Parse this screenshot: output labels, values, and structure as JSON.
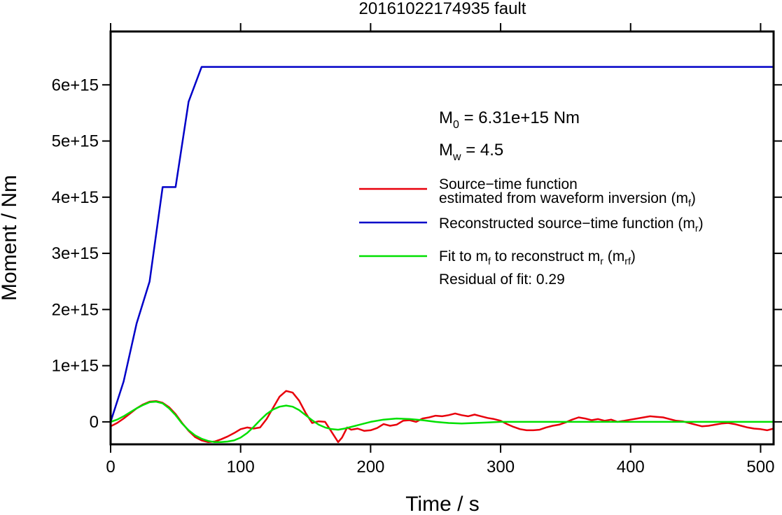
{
  "chart_data": {
    "type": "line",
    "title": "20161022174935 fault",
    "xlabel": "Time / s",
    "ylabel": "Moment / Nm",
    "xlim": [
      0,
      510
    ],
    "ylim": [
      -400000000000000.0,
      6950000000000000.0
    ],
    "x_ticks": [
      0,
      100,
      200,
      300,
      400,
      500
    ],
    "x_tick_labels": [
      "0",
      "100",
      "200",
      "300",
      "400",
      "500"
    ],
    "y_ticks": [
      0,
      1000000000000000.0,
      2000000000000000.0,
      3000000000000000.0,
      4000000000000000.0,
      5000000000000000.0,
      6000000000000000.0
    ],
    "y_tick_labels": [
      "0",
      "1e+15",
      "2e+15",
      "3e+15",
      "4e+15",
      "5e+15",
      "6e+15"
    ],
    "top_ticks": [
      0,
      100,
      200,
      300,
      400,
      500
    ],
    "right_ticks": [
      0,
      1000000000000000.0,
      2000000000000000.0,
      3000000000000000.0,
      4000000000000000.0,
      5000000000000000.0,
      6000000000000000.0
    ],
    "grid": false,
    "annotations": {
      "m0_main": "M",
      "m0_sub": "0",
      "m0_rest": " = 6.31e+15 Nm",
      "mw_main": "M",
      "mw_sub": "w",
      "mw_rest": " = 4.5",
      "residual": "Residual of fit: 0.29"
    },
    "legend": {
      "placement": "right",
      "entries": [
        {
          "color": "#e8000b",
          "line1": "Source−time function",
          "line2_main": "estimated from waveform inversion (m",
          "line2_sub": "f",
          "line2_end": ")"
        },
        {
          "color": "#0000c8",
          "line1_main": "Reconstructed source−time function (m",
          "line1_sub": "r",
          "line1_end": ")"
        },
        {
          "color": "#00e000",
          "line1_a": "Fit to m",
          "line1_sub1": "f",
          "line1_b": " to reconstruct m",
          "line1_sub2": "r",
          "line1_c": " (m",
          "line1_sub3": "rf",
          "line1_d": ")"
        }
      ]
    },
    "series": [
      {
        "color": "#0000c8",
        "x": [
          0,
          10,
          20,
          30,
          40,
          50,
          60,
          70,
          510
        ],
        "y": [
          0,
          720000000000000.0,
          1750000000000000.0,
          2500000000000000.0,
          4180000000000000.0,
          4180000000000000.0,
          5700000000000000.0,
          6320000000000000.0,
          6320000000000000.0
        ]
      },
      {
        "color": "#e8000b",
        "x": [
          0,
          5,
          10,
          15,
          20,
          25,
          30,
          35,
          40,
          45,
          50,
          55,
          60,
          65,
          70,
          75,
          80,
          85,
          90,
          95,
          100,
          105,
          110,
          115,
          120,
          125,
          130,
          135,
          140,
          145,
          150,
          155,
          160,
          165,
          170,
          175,
          178,
          182,
          185,
          190,
          195,
          200,
          205,
          210,
          215,
          220,
          225,
          230,
          235,
          240,
          245,
          250,
          255,
          260,
          265,
          270,
          275,
          280,
          285,
          290,
          295,
          300,
          305,
          310,
          315,
          320,
          325,
          330,
          335,
          340,
          345,
          350,
          355,
          360,
          365,
          370,
          375,
          380,
          385,
          390,
          395,
          400,
          405,
          410,
          415,
          420,
          425,
          430,
          435,
          440,
          445,
          450,
          455,
          460,
          465,
          470,
          475,
          480,
          485,
          490,
          495,
          500,
          505,
          510
        ],
        "y": [
          -80000000000000.0,
          -20000000000000.0,
          60000000000000.0,
          150000000000000.0,
          240000000000000.0,
          310000000000000.0,
          360000000000000.0,
          370000000000000.0,
          340000000000000.0,
          260000000000000.0,
          140000000000000.0,
          -20000000000000.0,
          -160000000000000.0,
          -270000000000000.0,
          -330000000000000.0,
          -360000000000000.0,
          -350000000000000.0,
          -310000000000000.0,
          -260000000000000.0,
          -200000000000000.0,
          -130000000000000.0,
          -100000000000000.0,
          -120000000000000.0,
          -100000000000000.0,
          50000000000000.0,
          250000000000000.0,
          450000000000000.0,
          550000000000000.0,
          520000000000000.0,
          380000000000000.0,
          160000000000000.0,
          -20000000000000.0,
          10000000000000.0,
          0.0,
          -180000000000000.0,
          -360000000000000.0,
          -280000000000000.0,
          -100000000000000.0,
          -140000000000000.0,
          -120000000000000.0,
          -160000000000000.0,
          -150000000000000.0,
          -110000000000000.0,
          -40000000000000.0,
          -70000000000000.0,
          -50000000000000.0,
          20000000000000.0,
          30000000000000.0,
          0.0,
          60000000000000.0,
          80000000000000.0,
          110000000000000.0,
          100000000000000.0,
          120000000000000.0,
          150000000000000.0,
          120000000000000.0,
          100000000000000.0,
          130000000000000.0,
          100000000000000.0,
          70000000000000.0,
          50000000000000.0,
          20000000000000.0,
          -40000000000000.0,
          -90000000000000.0,
          -130000000000000.0,
          -150000000000000.0,
          -150000000000000.0,
          -140000000000000.0,
          -100000000000000.0,
          -70000000000000.0,
          -50000000000000.0,
          -10000000000000.0,
          40000000000000.0,
          80000000000000.0,
          60000000000000.0,
          30000000000000.0,
          50000000000000.0,
          20000000000000.0,
          40000000000000.0,
          0.0,
          20000000000000.0,
          40000000000000.0,
          60000000000000.0,
          80000000000000.0,
          100000000000000.0,
          90000000000000.0,
          80000000000000.0,
          50000000000000.0,
          20000000000000.0,
          10000000000000.0,
          -20000000000000.0,
          -50000000000000.0,
          -80000000000000.0,
          -70000000000000.0,
          -50000000000000.0,
          -30000000000000.0,
          -20000000000000.0,
          -40000000000000.0,
          -70000000000000.0,
          -100000000000000.0,
          -120000000000000.0,
          -130000000000000.0,
          -150000000000000.0,
          -120000000000000.0
        ]
      },
      {
        "color": "#00e000",
        "x": [
          0,
          5,
          10,
          15,
          20,
          25,
          30,
          35,
          40,
          45,
          50,
          55,
          60,
          65,
          70,
          75,
          80,
          85,
          90,
          95,
          100,
          105,
          110,
          115,
          120,
          125,
          130,
          135,
          140,
          145,
          150,
          155,
          160,
          165,
          170,
          175,
          180,
          190,
          200,
          210,
          220,
          230,
          240,
          250,
          260,
          270,
          280,
          290,
          300,
          320,
          350,
          400,
          450,
          510
        ],
        "y": [
          0,
          40000000000000.0,
          100000000000000.0,
          170000000000000.0,
          240000000000000.0,
          300000000000000.0,
          350000000000000.0,
          360000000000000.0,
          330000000000000.0,
          240000000000000.0,
          120000000000000.0,
          -30000000000000.0,
          -150000000000000.0,
          -240000000000000.0,
          -300000000000000.0,
          -340000000000000.0,
          -360000000000000.0,
          -360000000000000.0,
          -350000000000000.0,
          -330000000000000.0,
          -280000000000000.0,
          -200000000000000.0,
          -90000000000000.0,
          30000000000000.0,
          140000000000000.0,
          220000000000000.0,
          270000000000000.0,
          290000000000000.0,
          270000000000000.0,
          210000000000000.0,
          120000000000000.0,
          30000000000000.0,
          -50000000000000.0,
          -100000000000000.0,
          -130000000000000.0,
          -140000000000000.0,
          -120000000000000.0,
          -60000000000000.0,
          0.0,
          40000000000000.0,
          60000000000000.0,
          50000000000000.0,
          30000000000000.0,
          0.0,
          -20000000000000.0,
          -30000000000000.0,
          -20000000000000.0,
          -10000000000000.0,
          0.0,
          0.0,
          0.0,
          0.0,
          0.0,
          0.0
        ]
      }
    ]
  }
}
